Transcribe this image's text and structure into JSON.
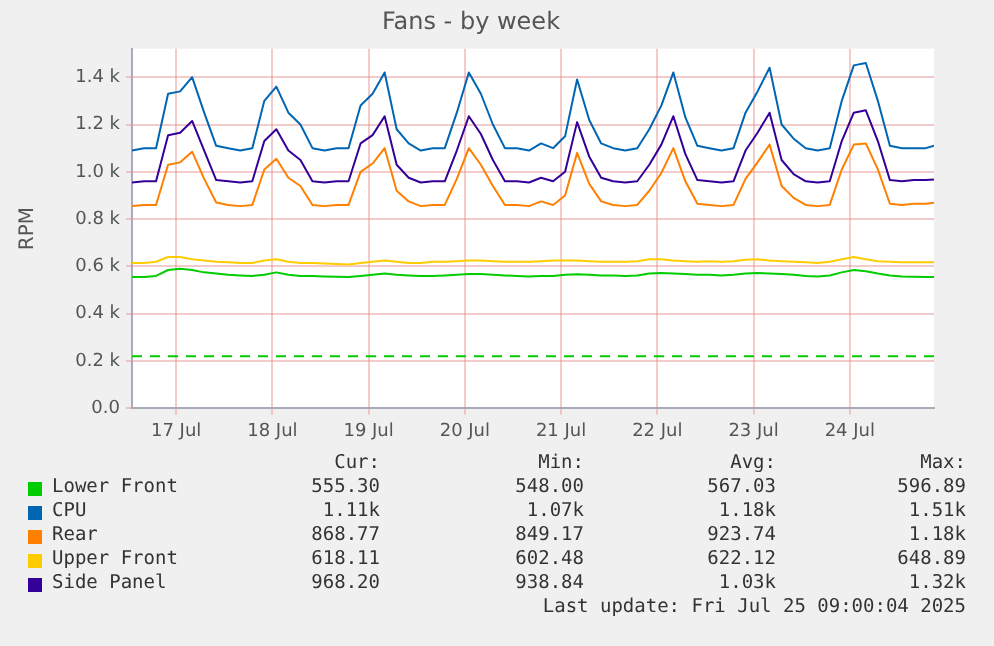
{
  "chart_data": {
    "type": "line",
    "title": "Fans - by week",
    "ylabel": "RPM",
    "x": [
      "2025-07-17T01:00",
      "2025-07-17T04:00",
      "2025-07-17T07:00",
      "2025-07-17T10:00",
      "2025-07-17T13:00",
      "2025-07-17T16:00",
      "2025-07-17T19:00",
      "2025-07-17T22:00",
      "2025-07-18T01:00",
      "2025-07-18T04:00",
      "2025-07-18T07:00",
      "2025-07-18T10:00",
      "2025-07-18T13:00",
      "2025-07-18T16:00",
      "2025-07-18T19:00",
      "2025-07-18T22:00",
      "2025-07-19T01:00",
      "2025-07-19T04:00",
      "2025-07-19T07:00",
      "2025-07-19T10:00",
      "2025-07-19T13:00",
      "2025-07-19T16:00",
      "2025-07-19T19:00",
      "2025-07-19T22:00",
      "2025-07-20T01:00",
      "2025-07-20T04:00",
      "2025-07-20T07:00",
      "2025-07-20T10:00",
      "2025-07-20T13:00",
      "2025-07-20T16:00",
      "2025-07-20T19:00",
      "2025-07-20T22:00",
      "2025-07-21T01:00",
      "2025-07-21T04:00",
      "2025-07-21T07:00",
      "2025-07-21T10:00",
      "2025-07-21T13:00",
      "2025-07-21T16:00",
      "2025-07-21T19:00",
      "2025-07-21T22:00",
      "2025-07-22T01:00",
      "2025-07-22T04:00",
      "2025-07-22T07:00",
      "2025-07-22T10:00",
      "2025-07-22T13:00",
      "2025-07-22T16:00",
      "2025-07-22T19:00",
      "2025-07-22T22:00",
      "2025-07-23T01:00",
      "2025-07-23T04:00",
      "2025-07-23T07:00",
      "2025-07-23T10:00",
      "2025-07-23T13:00",
      "2025-07-23T16:00",
      "2025-07-23T19:00",
      "2025-07-23T22:00",
      "2025-07-24T01:00",
      "2025-07-24T04:00",
      "2025-07-24T07:00",
      "2025-07-24T10:00",
      "2025-07-24T13:00",
      "2025-07-24T16:00",
      "2025-07-24T19:00",
      "2025-07-24T22:00",
      "2025-07-25T01:00",
      "2025-07-25T04:00",
      "2025-07-25T07:00",
      "2025-07-25T09:00"
    ],
    "series": [
      {
        "name": "Lower Front",
        "color": "#00cc00",
        "values": [
          555,
          555,
          560,
          585,
          590,
          585,
          575,
          570,
          565,
          562,
          560,
          565,
          575,
          565,
          560,
          560,
          558,
          556,
          555,
          560,
          565,
          570,
          565,
          562,
          560,
          560,
          562,
          565,
          568,
          568,
          565,
          562,
          560,
          558,
          560,
          560,
          565,
          567,
          565,
          562,
          562,
          560,
          562,
          570,
          572,
          570,
          568,
          565,
          565,
          562,
          565,
          570,
          572,
          570,
          568,
          565,
          560,
          558,
          562,
          575,
          585,
          580,
          570,
          562,
          558,
          556,
          555,
          555
        ]
      },
      {
        "name": "CPU",
        "color": "#0066b3",
        "values": [
          1090,
          1100,
          1100,
          1330,
          1340,
          1400,
          1250,
          1110,
          1100,
          1090,
          1100,
          1300,
          1360,
          1250,
          1200,
          1100,
          1090,
          1100,
          1100,
          1280,
          1330,
          1420,
          1180,
          1120,
          1090,
          1100,
          1100,
          1250,
          1420,
          1330,
          1200,
          1100,
          1100,
          1090,
          1120,
          1100,
          1150,
          1390,
          1220,
          1120,
          1100,
          1090,
          1100,
          1180,
          1280,
          1420,
          1230,
          1110,
          1100,
          1090,
          1100,
          1250,
          1340,
          1440,
          1200,
          1140,
          1100,
          1090,
          1100,
          1300,
          1450,
          1460,
          1300,
          1110,
          1100,
          1100,
          1100,
          1110
        ]
      },
      {
        "name": "Rear",
        "color": "#ff8000",
        "values": [
          855,
          860,
          860,
          1030,
          1040,
          1085,
          970,
          870,
          860,
          855,
          860,
          1010,
          1055,
          975,
          940,
          860,
          855,
          860,
          860,
          1000,
          1035,
          1100,
          920,
          875,
          855,
          860,
          860,
          970,
          1100,
          1030,
          940,
          860,
          860,
          855,
          875,
          860,
          900,
          1080,
          950,
          875,
          860,
          855,
          860,
          920,
          995,
          1100,
          960,
          865,
          860,
          855,
          860,
          970,
          1040,
          1115,
          940,
          890,
          860,
          855,
          860,
          1010,
          1115,
          1120,
          1010,
          865,
          860,
          865,
          865,
          869
        ]
      },
      {
        "name": "Upper Front",
        "color": "#ffcc00",
        "values": [
          615,
          615,
          620,
          640,
          640,
          630,
          625,
          620,
          618,
          615,
          615,
          625,
          630,
          620,
          615,
          615,
          612,
          610,
          608,
          615,
          620,
          625,
          620,
          615,
          615,
          620,
          620,
          622,
          625,
          625,
          622,
          620,
          620,
          620,
          622,
          625,
          625,
          625,
          622,
          620,
          620,
          620,
          622,
          630,
          630,
          625,
          622,
          620,
          622,
          620,
          622,
          628,
          630,
          625,
          622,
          620,
          618,
          615,
          620,
          630,
          640,
          630,
          622,
          620,
          618,
          618,
          618,
          618
        ]
      },
      {
        "name": "Side Panel",
        "color": "#330099",
        "values": [
          955,
          960,
          960,
          1155,
          1165,
          1215,
          1090,
          965,
          960,
          955,
          960,
          1130,
          1180,
          1090,
          1050,
          960,
          955,
          960,
          960,
          1120,
          1155,
          1235,
          1030,
          975,
          955,
          960,
          960,
          1090,
          1235,
          1160,
          1050,
          960,
          960,
          955,
          975,
          960,
          1000,
          1210,
          1065,
          975,
          960,
          955,
          960,
          1030,
          1115,
          1235,
          1075,
          965,
          960,
          955,
          960,
          1090,
          1165,
          1250,
          1050,
          990,
          960,
          955,
          960,
          1130,
          1250,
          1260,
          1130,
          965,
          960,
          965,
          965,
          968
        ]
      }
    ],
    "xlim": [
      "2025-07-17T01:00",
      "2025-07-25T09:00"
    ],
    "xticks": [
      {
        "value": "2025-07-17T12:00",
        "label": "17 Jul"
      },
      {
        "value": "2025-07-18T12:00",
        "label": "18 Jul"
      },
      {
        "value": "2025-07-19T12:00",
        "label": "19 Jul"
      },
      {
        "value": "2025-07-20T12:00",
        "label": "20 Jul"
      },
      {
        "value": "2025-07-21T12:00",
        "label": "21 Jul"
      },
      {
        "value": "2025-07-22T12:00",
        "label": "22 Jul"
      },
      {
        "value": "2025-07-23T12:00",
        "label": "23 Jul"
      },
      {
        "value": "2025-07-24T12:00",
        "label": "24 Jul"
      }
    ],
    "ylim": [
      0,
      1520
    ],
    "yticks": [
      {
        "value": 0,
        "label": "0.0"
      },
      {
        "value": 200,
        "label": "0.2 k"
      },
      {
        "value": 400,
        "label": "0.4 k"
      },
      {
        "value": 600,
        "label": "0.6 k"
      },
      {
        "value": 800,
        "label": "0.8 k"
      },
      {
        "value": 1000,
        "label": "1.0 k"
      },
      {
        "value": 1200,
        "label": "1.2 k"
      },
      {
        "value": 1400,
        "label": "1.4 k"
      }
    ],
    "ref_lines": [
      {
        "axis": "y",
        "value": 220,
        "color": "#00cc00",
        "line_style": "dashed"
      }
    ],
    "grid": true,
    "legend": "bottom",
    "marker": "none",
    "line_style": "solid",
    "annotations": [
      "Cur:",
      "Min:",
      "Avg:",
      "Max:",
      "555.30",
      "548.00",
      "567.03",
      "596.89",
      "1.11k",
      "1.07k",
      "1.18k",
      "1.51k",
      "868.77",
      "849.17",
      "923.74",
      "1.18k",
      "618.11",
      "602.48",
      "622.12",
      "648.89",
      "968.20",
      "938.84",
      "1.03k",
      "1.32k",
      "Last update: Fri Jul 25 09:00:04 2025"
    ]
  }
}
